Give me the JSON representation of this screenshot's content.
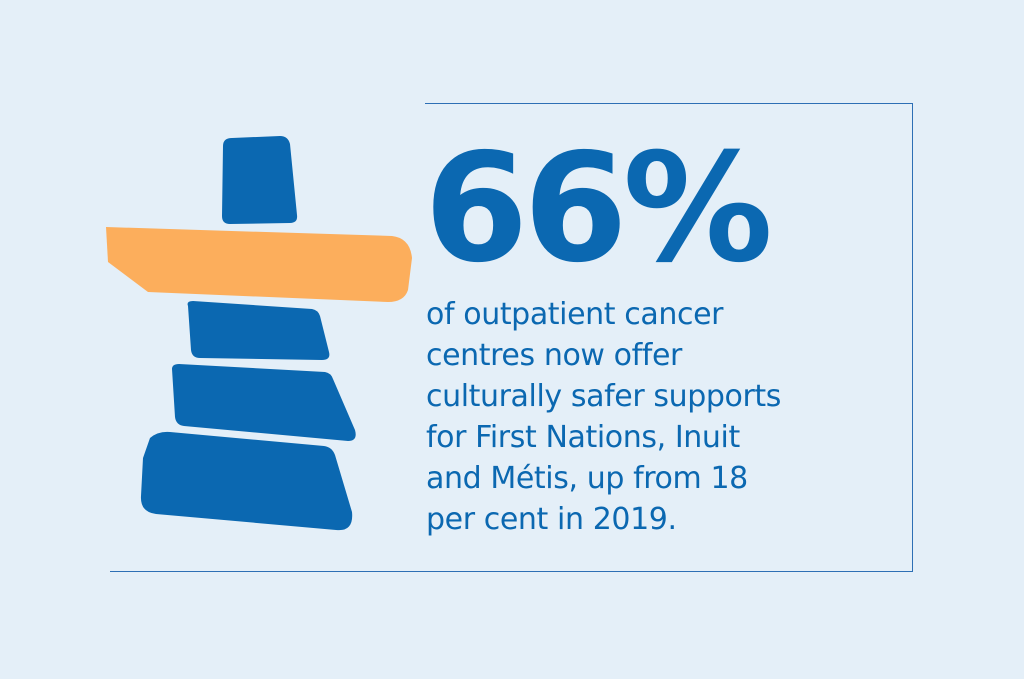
{
  "statistic": {
    "value": "66%",
    "description_lines": [
      "of outpatient cancer",
      "centres now offer",
      "culturally safer supports",
      "for First Nations, Inuit",
      "and Métis, up from 18",
      "per cent in 2019."
    ]
  },
  "colors": {
    "background": "#e4eff8",
    "primary_blue": "#0b68b1",
    "accent_orange": "#fcae5c",
    "frame_line": "#2d6fb5"
  },
  "icons": {
    "illustration": "inukshuk-icon"
  }
}
